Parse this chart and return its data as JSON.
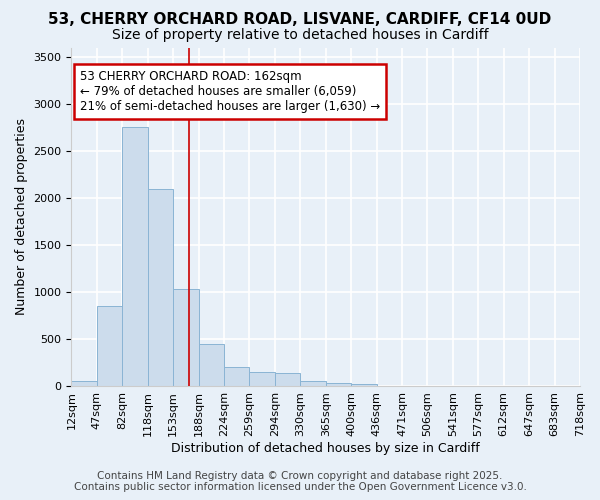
{
  "title_line1": "53, CHERRY ORCHARD ROAD, LISVANE, CARDIFF, CF14 0UD",
  "title_line2": "Size of property relative to detached houses in Cardiff",
  "xlabel": "Distribution of detached houses by size in Cardiff",
  "ylabel": "Number of detached properties",
  "bar_labels": [
    "12sqm",
    "47sqm",
    "82sqm",
    "118sqm",
    "153sqm",
    "188sqm",
    "224sqm",
    "259sqm",
    "294sqm",
    "330sqm",
    "365sqm",
    "400sqm",
    "436sqm",
    "471sqm",
    "506sqm",
    "541sqm",
    "577sqm",
    "612sqm",
    "647sqm",
    "683sqm",
    "718sqm"
  ],
  "values": [
    55,
    850,
    2760,
    2100,
    1030,
    455,
    205,
    155,
    145,
    60,
    40,
    30,
    10,
    8,
    5,
    3,
    2,
    2,
    1,
    1
  ],
  "bar_color": "#ccdcec",
  "bar_edge_color": "#8ab4d4",
  "background_color": "#e8f0f8",
  "grid_color": "#ffffff",
  "vline_x": 4.62,
  "vline_color": "#cc0000",
  "ylim": [
    0,
    3600
  ],
  "yticks": [
    0,
    500,
    1000,
    1500,
    2000,
    2500,
    3000,
    3500
  ],
  "annotation_text": "53 CHERRY ORCHARD ROAD: 162sqm\n← 79% of detached houses are smaller (6,059)\n21% of semi-detached houses are larger (1,630) →",
  "annotation_box_color": "#ffffff",
  "annotation_border_color": "#cc0000",
  "footer_text": "Contains HM Land Registry data © Crown copyright and database right 2025.\nContains public sector information licensed under the Open Government Licence v3.0.",
  "title_fontsize": 11,
  "subtitle_fontsize": 10,
  "axis_label_fontsize": 9,
  "tick_fontsize": 8,
  "annotation_fontsize": 8.5,
  "footer_fontsize": 7.5
}
